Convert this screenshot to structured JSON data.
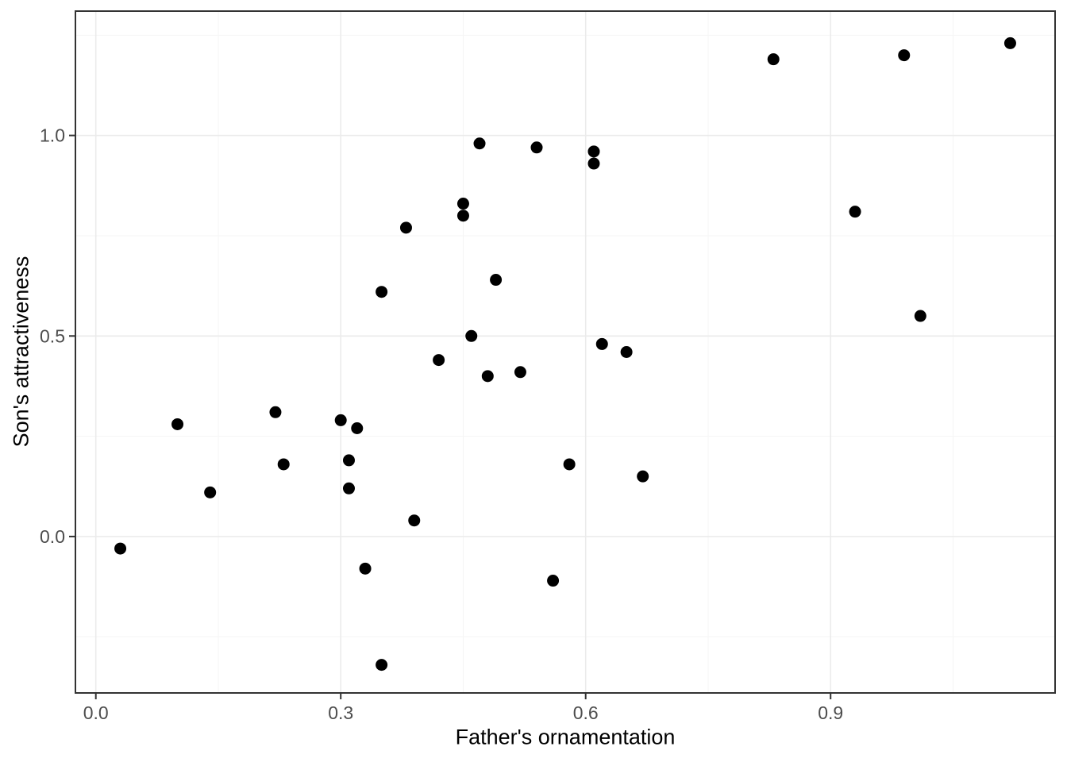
{
  "chart_data": {
    "type": "scatter",
    "xlabel": "Father's ornamentation",
    "ylabel": "Son's attractiveness",
    "xlim": [
      -0.025,
      1.175
    ],
    "ylim": [
      -0.39,
      1.31
    ],
    "x_major_ticks": [
      0.0,
      0.3,
      0.6,
      0.9
    ],
    "x_tick_labels": [
      "0.0",
      "0.3",
      "0.6",
      "0.9"
    ],
    "x_minor_ticks": [
      0.15,
      0.45,
      0.75,
      1.05
    ],
    "y_major_ticks": [
      0.0,
      0.5,
      1.0
    ],
    "y_tick_labels": [
      "0.0",
      "0.5",
      "1.0"
    ],
    "y_minor_ticks": [
      -0.25,
      0.25,
      0.75,
      1.25
    ],
    "grid": true,
    "legend": "none",
    "points": [
      [
        0.03,
        -0.03
      ],
      [
        0.1,
        0.28
      ],
      [
        0.14,
        0.11
      ],
      [
        0.22,
        0.31
      ],
      [
        0.23,
        0.18
      ],
      [
        0.3,
        0.29
      ],
      [
        0.31,
        0.19
      ],
      [
        0.31,
        0.12
      ],
      [
        0.32,
        0.27
      ],
      [
        0.33,
        -0.08
      ],
      [
        0.35,
        -0.32
      ],
      [
        0.35,
        0.61
      ],
      [
        0.38,
        0.77
      ],
      [
        0.39,
        0.04
      ],
      [
        0.42,
        0.44
      ],
      [
        0.45,
        0.83
      ],
      [
        0.45,
        0.8
      ],
      [
        0.46,
        0.5
      ],
      [
        0.47,
        0.98
      ],
      [
        0.48,
        0.4
      ],
      [
        0.49,
        0.64
      ],
      [
        0.52,
        0.41
      ],
      [
        0.54,
        0.97
      ],
      [
        0.56,
        -0.11
      ],
      [
        0.58,
        0.18
      ],
      [
        0.61,
        0.96
      ],
      [
        0.61,
        0.93
      ],
      [
        0.62,
        0.48
      ],
      [
        0.65,
        0.46
      ],
      [
        0.67,
        0.15
      ],
      [
        0.83,
        1.19
      ],
      [
        0.93,
        0.81
      ],
      [
        0.99,
        1.2
      ],
      [
        1.01,
        0.55
      ],
      [
        1.12,
        1.23
      ]
    ],
    "colors": {
      "background": "#ffffff",
      "panel_background": "#ffffff",
      "point": "#000000",
      "grid_major": "#ebebeb",
      "grid_minor": "#f5f5f5",
      "panel_border": "#333333",
      "tick_mark": "#333333",
      "tick_label": "#4d4d4d",
      "axis_title": "#000000"
    }
  }
}
